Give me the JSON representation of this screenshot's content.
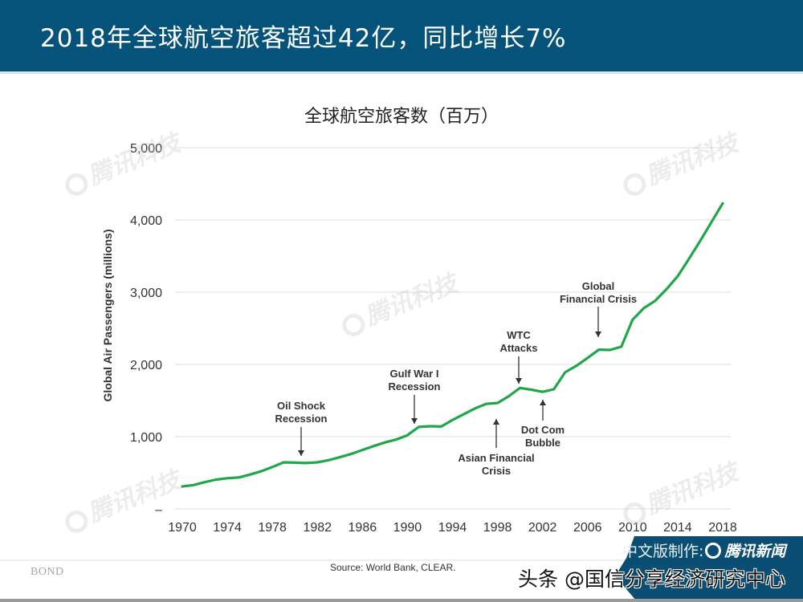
{
  "header": {
    "title": "2018年全球航空旅客超过42亿，同比增长7%",
    "background_color": "#05537a"
  },
  "chart_data": {
    "type": "line",
    "title": "全球航空旅客数（百万）",
    "xlabel": "",
    "ylabel": "Global Air Passengers (millions)",
    "ylim": [
      0,
      5000
    ],
    "xlim": [
      1970,
      2018
    ],
    "grid": true,
    "y_ticks": [
      "–",
      "1,000",
      "2,000",
      "3,000",
      "4,000",
      "5,000"
    ],
    "y_tick_values": [
      0,
      1000,
      2000,
      3000,
      4000,
      5000
    ],
    "x_ticks": [
      "1970",
      "1974",
      "1978",
      "1982",
      "1986",
      "1990",
      "1994",
      "1998",
      "2002",
      "2006",
      "2010",
      "2014",
      "2018"
    ],
    "series": [
      {
        "name": "Global Air Passengers",
        "color": "#22a64a",
        "x": [
          1970,
          1971,
          1972,
          1973,
          1974,
          1975,
          1976,
          1977,
          1978,
          1979,
          1980,
          1981,
          1982,
          1983,
          1984,
          1985,
          1986,
          1987,
          1988,
          1989,
          1990,
          1991,
          1992,
          1993,
          1994,
          1995,
          1996,
          1997,
          1998,
          1999,
          2000,
          2001,
          2002,
          2003,
          2004,
          2005,
          2006,
          2007,
          2008,
          2009,
          2010,
          2011,
          2012,
          2013,
          2014,
          2015,
          2016,
          2017,
          2018
        ],
        "values": [
          310,
          330,
          370,
          405,
          425,
          435,
          475,
          520,
          580,
          645,
          640,
          635,
          645,
          675,
          715,
          760,
          815,
          870,
          920,
          960,
          1020,
          1135,
          1145,
          1140,
          1230,
          1310,
          1390,
          1455,
          1465,
          1560,
          1675,
          1650,
          1620,
          1655,
          1890,
          1980,
          2090,
          2205,
          2200,
          2245,
          2620,
          2780,
          2880,
          3040,
          3220,
          3460,
          3710,
          3970,
          4230
        ]
      }
    ],
    "annotations": [
      {
        "label": "Oil Shock\nRecession",
        "year": 1981,
        "direction": "down"
      },
      {
        "label": "Gulf War I\nRecession",
        "year": 1991,
        "direction": "down"
      },
      {
        "label": "Asian Financial\nCrisis",
        "year": 1998,
        "direction": "up"
      },
      {
        "label": "WTC\nAttacks",
        "year": 2001,
        "direction": "down"
      },
      {
        "label": "Dot Com\nBubble",
        "year": 2003,
        "direction": "up"
      },
      {
        "label": "Global\nFinancial Crisis",
        "year": 2008,
        "direction": "down"
      }
    ]
  },
  "footer": {
    "bond_logo": "BOND",
    "source": "Source: World Bank, CLEAR.",
    "badge_prefix": "中文版制作:",
    "badge_brand": "腾讯新闻",
    "toutiao_credit": "头条 @国信分享经济研究中心"
  },
  "watermark": {
    "text": "腾讯科技"
  }
}
